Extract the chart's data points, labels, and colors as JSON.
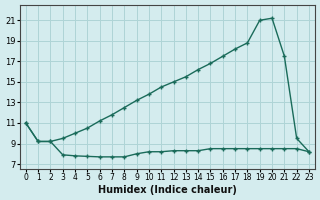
{
  "xlabel": "Humidex (Indice chaleur)",
  "background_color": "#d4ecee",
  "grid_color": "#aed4d6",
  "line_color": "#1a6b5a",
  "xlim": [
    -0.5,
    23.5
  ],
  "ylim": [
    6.5,
    22.5
  ],
  "yticks": [
    7,
    9,
    11,
    13,
    15,
    17,
    19,
    21
  ],
  "xticks": [
    0,
    1,
    2,
    3,
    4,
    5,
    6,
    7,
    8,
    9,
    10,
    11,
    12,
    13,
    14,
    15,
    16,
    17,
    18,
    19,
    20,
    21,
    22,
    23
  ],
  "line1_x": [
    0,
    1,
    2,
    3,
    4,
    5,
    6,
    7,
    8,
    9,
    10,
    11,
    12,
    13,
    14,
    15,
    16,
    17,
    18,
    19,
    20,
    21,
    22,
    23
  ],
  "line1_y": [
    11.0,
    9.2,
    9.2,
    9.5,
    10.0,
    10.5,
    11.2,
    11.8,
    12.5,
    13.2,
    13.8,
    14.5,
    15.0,
    15.5,
    16.2,
    16.8,
    17.5,
    18.2,
    18.8,
    21.0,
    21.2,
    17.5,
    9.5,
    8.2
  ],
  "line2_x": [
    0,
    1,
    2,
    3,
    4,
    5,
    6,
    7,
    8,
    9,
    10,
    11,
    12,
    13,
    14,
    15,
    16,
    17,
    18,
    19,
    20,
    21,
    22,
    23
  ],
  "line2_y": [
    11.0,
    9.2,
    9.2,
    7.9,
    7.8,
    7.75,
    7.7,
    7.7,
    7.7,
    8.0,
    8.2,
    8.2,
    8.3,
    8.3,
    8.3,
    8.5,
    8.5,
    8.5,
    8.5,
    8.5,
    8.5,
    8.5,
    8.5,
    8.2
  ]
}
